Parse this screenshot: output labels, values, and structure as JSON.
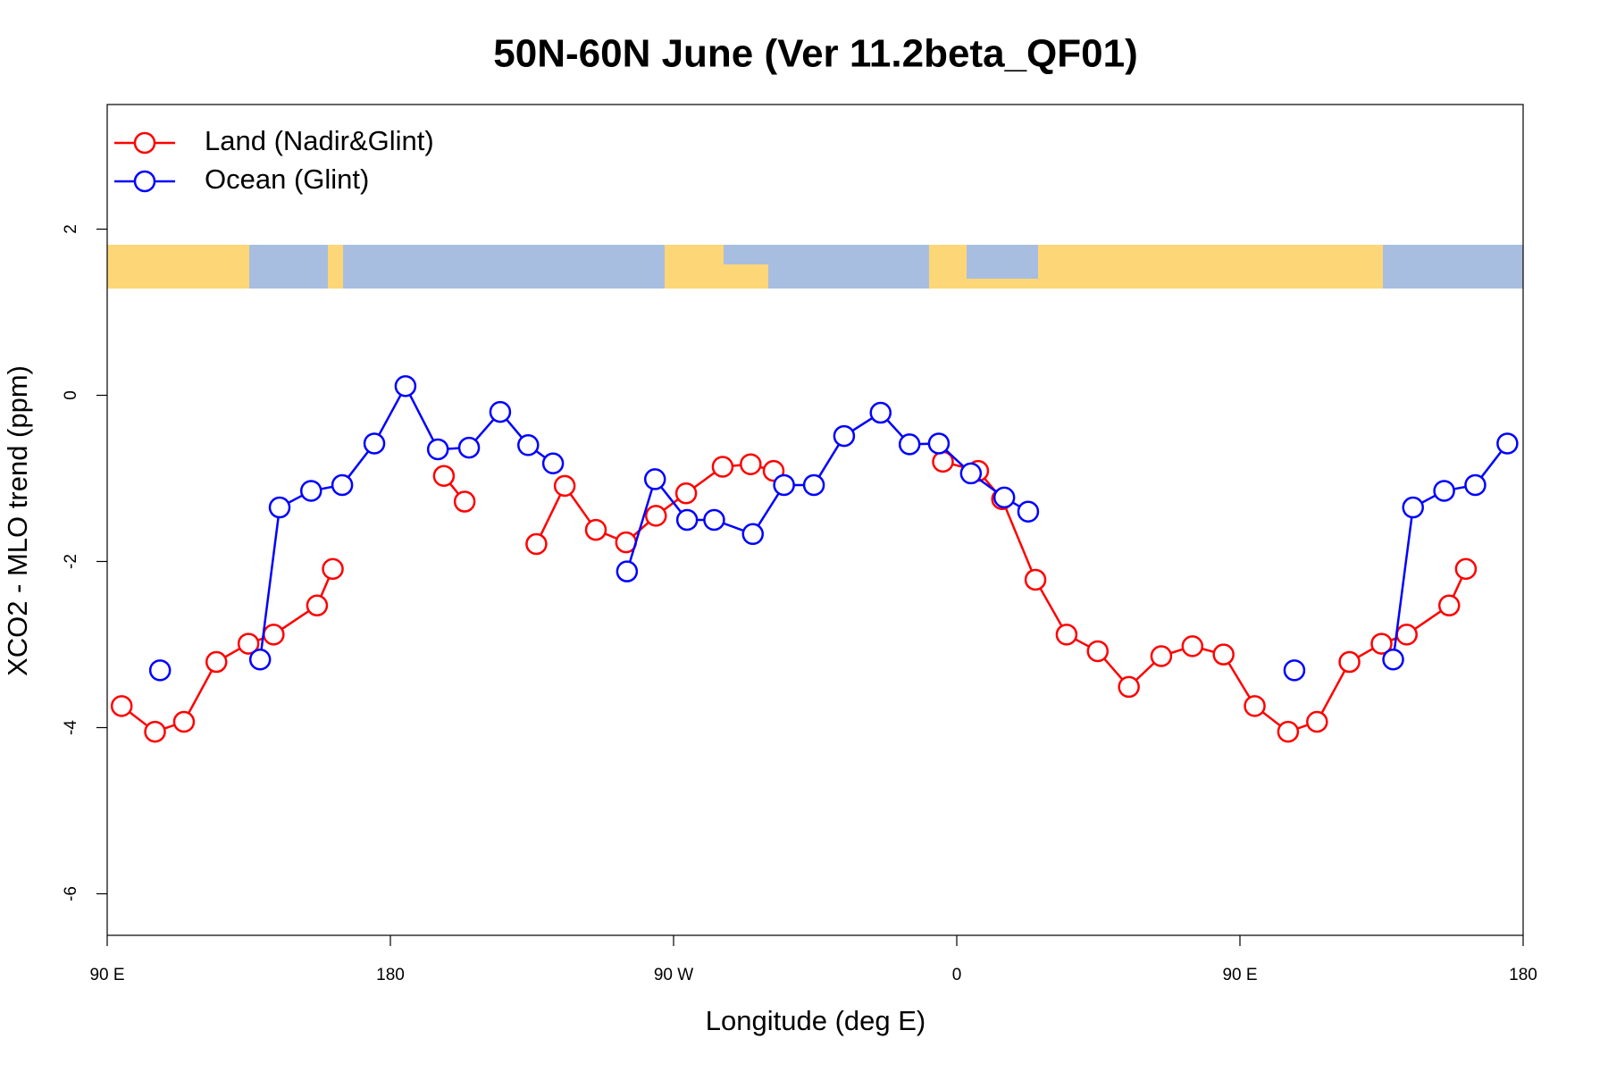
{
  "chart_data": {
    "type": "line",
    "title": "50N-60N June (Ver 11.2beta_QF01)",
    "x_label": "Longitude (deg E)",
    "y_label": "XCO2 - MLO trend (ppm)",
    "xlim": [
      90,
      540
    ],
    "ylim": [
      -6.5,
      3.5
    ],
    "xticks": [
      {
        "value": 90,
        "label": "90 E"
      },
      180,
      {
        "value": 270,
        "label": "90 W"
      },
      {
        "value": 360,
        "label": "0"
      },
      {
        "value": 450,
        "label": "90 E"
      },
      {
        "value": 540,
        "label": "180"
      }
    ],
    "yticks": [
      -6,
      -4,
      -2,
      0,
      2
    ],
    "grid": false,
    "legend": "top-left",
    "series": [
      {
        "name": "Land (Nadir&Glint)",
        "color": "#ff0000",
        "x": [
          94.6,
          105.2,
          114.4,
          124.7,
          134.9,
          142.9,
          156.7,
          161.7,
          null,
          197.0,
          203.6,
          null,
          226.4,
          235.4,
          245.3,
          254.9,
          264.4,
          274.0,
          285.6,
          294.5,
          301.8,
          null,
          355.6,
          366.8,
          374.4,
          385.0,
          394.9,
          404.8,
          414.7,
          425.0,
          434.9,
          444.8,
          454.7,
          465.3,
          474.5,
          484.8,
          495.0,
          503.0,
          516.5,
          521.8
        ],
        "values": [
          -3.74,
          -4.05,
          -3.93,
          -3.21,
          -2.99,
          -2.88,
          -2.53,
          -2.09,
          null,
          -0.97,
          -1.28,
          null,
          -1.79,
          -1.09,
          -1.62,
          -1.77,
          -1.45,
          -1.18,
          -0.86,
          -0.83,
          -0.91,
          null,
          -0.8,
          -0.91,
          -1.25,
          -2.22,
          -2.88,
          -3.08,
          -3.51,
          -3.14,
          -3.02,
          -3.12,
          -3.74,
          -4.05,
          -3.93,
          -3.21,
          -2.99,
          -2.88,
          -2.53,
          -2.09
        ]
      },
      {
        "name": "Ocean (Glint)",
        "color": "#0000ff",
        "x": [
          106.8,
          null,
          138.6,
          144.8,
          154.8,
          164.7,
          174.9,
          184.8,
          195.1,
          205.0,
          214.9,
          223.8,
          231.7,
          null,
          255.2,
          264.1,
          274.3,
          282.9,
          295.2,
          305.1,
          314.6,
          324.2,
          335.8,
          345.0,
          354.3,
          364.5,
          375.1,
          382.7,
          null,
          467.3,
          null,
          498.7,
          505.0,
          514.9,
          524.8,
          535.0
        ],
        "values": [
          -3.31,
          null,
          -3.18,
          -1.35,
          -1.15,
          -1.08,
          -0.58,
          0.11,
          -0.65,
          -0.63,
          -0.2,
          -0.6,
          -0.82,
          null,
          -2.12,
          -1.01,
          -1.5,
          -1.5,
          -1.67,
          -1.08,
          -1.08,
          -0.49,
          -0.21,
          -0.59,
          -0.58,
          -0.94,
          -1.23,
          -1.4,
          null,
          -3.31,
          null,
          -3.18,
          -1.35,
          -1.15,
          -1.08,
          -0.58
        ]
      }
    ]
  }
}
